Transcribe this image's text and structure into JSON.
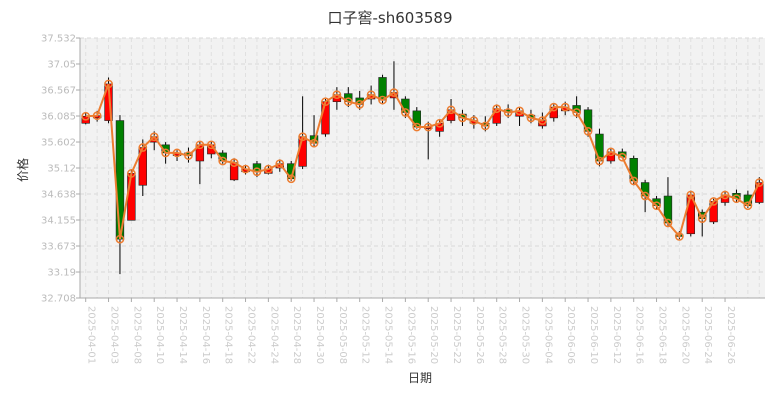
{
  "chart_data": {
    "type": "candlestick",
    "title": "口子窖-sh603589",
    "xlabel": "日期",
    "ylabel": "价格",
    "ylim": [
      32.708,
      37.532
    ],
    "yticks": [
      32.708,
      33.19,
      33.673,
      34.155,
      34.638,
      35.12,
      35.602,
      36.085,
      36.567,
      37.05,
      37.532
    ],
    "grid": true,
    "colors": {
      "up": "#ff0000",
      "down": "#008000",
      "close_line": "#ed7d31",
      "wick": "#000000"
    },
    "x_labels": [
      "2025-04-01",
      "2025-04-03",
      "2025-04-08",
      "2025-04-10",
      "2025-04-14",
      "2025-04-16",
      "2025-04-18",
      "2025-04-22",
      "2025-04-24",
      "2025-04-28",
      "2025-04-30",
      "2025-05-08",
      "2025-05-12",
      "2025-05-14",
      "2025-05-16",
      "2025-05-20",
      "2025-05-22",
      "2025-05-26",
      "2025-05-28",
      "2025-05-30",
      "2025-06-04",
      "2025-06-06",
      "2025-06-10",
      "2025-06-12",
      "2025-06-16",
      "2025-06-18",
      "2025-06-20",
      "2025-06-24",
      "2025-06-26"
    ],
    "candles": [
      {
        "open": 35.95,
        "close": 36.08,
        "high": 36.15,
        "low": 35.93
      },
      {
        "open": 36.05,
        "close": 36.09,
        "high": 36.18,
        "low": 35.98
      },
      {
        "open": 36.0,
        "close": 36.68,
        "high": 36.8,
        "low": 35.95
      },
      {
        "open": 36.0,
        "close": 33.8,
        "high": 36.1,
        "low": 33.15
      },
      {
        "open": 34.15,
        "close": 35.02,
        "high": 35.1,
        "low": 34.15
      },
      {
        "open": 34.8,
        "close": 35.5,
        "high": 35.65,
        "low": 34.6
      },
      {
        "open": 35.6,
        "close": 35.7,
        "high": 35.8,
        "low": 35.45
      },
      {
        "open": 35.55,
        "close": 35.4,
        "high": 35.6,
        "low": 35.2
      },
      {
        "open": 35.35,
        "close": 35.4,
        "high": 35.45,
        "low": 35.25
      },
      {
        "open": 35.4,
        "close": 35.35,
        "high": 35.5,
        "low": 35.22
      },
      {
        "open": 35.25,
        "close": 35.55,
        "high": 35.62,
        "low": 34.82
      },
      {
        "open": 35.38,
        "close": 35.55,
        "high": 35.62,
        "low": 35.3
      },
      {
        "open": 35.4,
        "close": 35.25,
        "high": 35.45,
        "low": 35.2
      },
      {
        "open": 34.9,
        "close": 35.22,
        "high": 35.3,
        "low": 34.88
      },
      {
        "open": 35.05,
        "close": 35.1,
        "high": 35.18,
        "low": 35.0
      },
      {
        "open": 35.2,
        "close": 35.05,
        "high": 35.25,
        "low": 34.95
      },
      {
        "open": 35.02,
        "close": 35.1,
        "high": 35.18,
        "low": 35.0
      },
      {
        "open": 35.12,
        "close": 35.2,
        "high": 35.28,
        "low": 35.05
      },
      {
        "open": 35.2,
        "close": 34.92,
        "high": 35.25,
        "low": 34.88
      },
      {
        "open": 35.15,
        "close": 35.7,
        "high": 36.45,
        "low": 35.1
      },
      {
        "open": 35.72,
        "close": 35.58,
        "high": 36.1,
        "low": 35.5
      },
      {
        "open": 35.75,
        "close": 36.35,
        "high": 36.4,
        "low": 35.7
      },
      {
        "open": 36.35,
        "close": 36.48,
        "high": 36.62,
        "low": 36.2
      },
      {
        "open": 36.5,
        "close": 36.35,
        "high": 36.62,
        "low": 36.25
      },
      {
        "open": 36.42,
        "close": 36.3,
        "high": 36.55,
        "low": 36.2
      },
      {
        "open": 36.4,
        "close": 36.48,
        "high": 36.65,
        "low": 36.3
      },
      {
        "open": 36.8,
        "close": 36.38,
        "high": 36.85,
        "low": 36.3
      },
      {
        "open": 36.42,
        "close": 36.52,
        "high": 37.1,
        "low": 36.2
      },
      {
        "open": 36.4,
        "close": 36.15,
        "high": 36.45,
        "low": 36.05
      },
      {
        "open": 36.18,
        "close": 35.88,
        "high": 36.25,
        "low": 35.85
      },
      {
        "open": 35.85,
        "close": 35.88,
        "high": 35.98,
        "low": 35.28
      },
      {
        "open": 35.8,
        "close": 35.95,
        "high": 36.0,
        "low": 35.7
      },
      {
        "open": 36.0,
        "close": 36.2,
        "high": 36.4,
        "low": 35.95
      },
      {
        "open": 36.12,
        "close": 36.05,
        "high": 36.2,
        "low": 35.9
      },
      {
        "open": 35.95,
        "close": 36.0,
        "high": 36.1,
        "low": 35.85
      },
      {
        "open": 35.95,
        "close": 35.9,
        "high": 36.08,
        "low": 35.8
      },
      {
        "open": 35.95,
        "close": 36.22,
        "high": 36.3,
        "low": 35.9
      },
      {
        "open": 36.2,
        "close": 36.15,
        "high": 36.3,
        "low": 36.05
      },
      {
        "open": 36.08,
        "close": 36.18,
        "high": 36.25,
        "low": 35.9
      },
      {
        "open": 36.1,
        "close": 36.05,
        "high": 36.2,
        "low": 35.95
      },
      {
        "open": 35.9,
        "close": 36.0,
        "high": 36.15,
        "low": 35.85
      },
      {
        "open": 36.05,
        "close": 36.25,
        "high": 36.3,
        "low": 35.98
      },
      {
        "open": 36.18,
        "close": 36.25,
        "high": 36.35,
        "low": 36.1
      },
      {
        "open": 36.28,
        "close": 36.15,
        "high": 36.45,
        "low": 36.05
      },
      {
        "open": 36.2,
        "close": 35.8,
        "high": 36.25,
        "low": 35.7
      },
      {
        "open": 35.75,
        "close": 35.25,
        "high": 35.85,
        "low": 35.15
      },
      {
        "open": 35.25,
        "close": 35.42,
        "high": 35.5,
        "low": 35.2
      },
      {
        "open": 35.42,
        "close": 35.32,
        "high": 35.48,
        "low": 35.3
      },
      {
        "open": 35.3,
        "close": 34.88,
        "high": 35.35,
        "low": 34.8
      },
      {
        "open": 34.85,
        "close": 34.6,
        "high": 34.9,
        "low": 34.3
      },
      {
        "open": 34.55,
        "close": 34.42,
        "high": 34.6,
        "low": 34.35
      },
      {
        "open": 34.6,
        "close": 34.1,
        "high": 34.95,
        "low": 34.05
      },
      {
        "open": 33.88,
        "close": 33.85,
        "high": 33.95,
        "low": 33.8
      },
      {
        "open": 33.9,
        "close": 34.62,
        "high": 34.7,
        "low": 33.85
      },
      {
        "open": 34.3,
        "close": 34.18,
        "high": 34.35,
        "low": 33.85
      },
      {
        "open": 34.12,
        "close": 34.5,
        "high": 34.55,
        "low": 34.08
      },
      {
        "open": 34.48,
        "close": 34.62,
        "high": 34.7,
        "low": 34.42
      },
      {
        "open": 34.65,
        "close": 34.55,
        "high": 34.72,
        "low": 34.48
      },
      {
        "open": 34.62,
        "close": 34.42,
        "high": 34.7,
        "low": 34.38
      },
      {
        "open": 34.48,
        "close": 34.85,
        "high": 34.95,
        "low": 34.45
      }
    ]
  }
}
